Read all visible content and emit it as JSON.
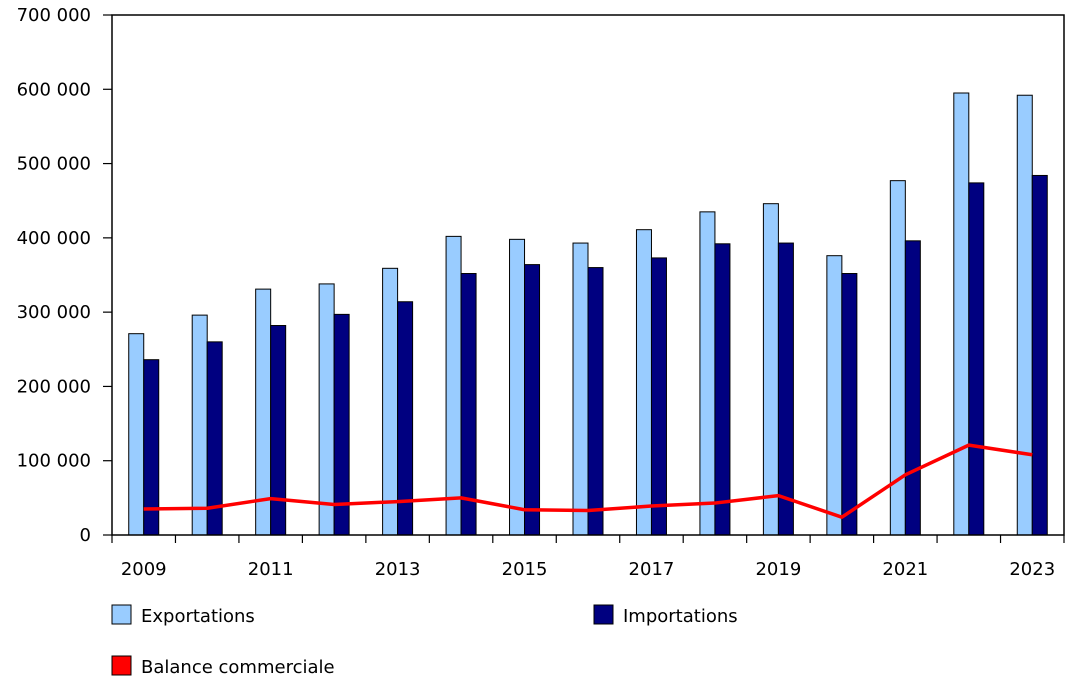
{
  "chart_data": {
    "type": "bar",
    "categories": [
      "2009",
      "2010",
      "2011",
      "2012",
      "2013",
      "2014",
      "2015",
      "2016",
      "2017",
      "2018",
      "2019",
      "2020",
      "2021",
      "2022",
      "2023"
    ],
    "x_tick_labels": [
      "2009",
      "",
      "2011",
      "",
      "2013",
      "",
      "2015",
      "",
      "2017",
      "",
      "2019",
      "",
      "2021",
      "",
      "2023"
    ],
    "y_tick_labels": [
      "0",
      "100 000",
      "200 000",
      "300 000",
      "400 000",
      "500 000",
      "600 000",
      "700 000"
    ],
    "ylim": [
      0,
      700000
    ],
    "grid": false,
    "legend_placement": "bottom",
    "series": [
      {
        "name": "Exportations",
        "kind": "bar",
        "color": "#99ccff",
        "values": [
          271000,
          296000,
          331000,
          338000,
          359000,
          402000,
          398000,
          393000,
          411000,
          435000,
          446000,
          376000,
          477000,
          595000,
          592000
        ]
      },
      {
        "name": "Importations",
        "kind": "bar",
        "color": "#000080",
        "values": [
          236000,
          260000,
          282000,
          297000,
          314000,
          352000,
          364000,
          360000,
          373000,
          392000,
          393000,
          352000,
          396000,
          474000,
          484000
        ]
      },
      {
        "name": "Balance commerciale",
        "kind": "line",
        "color": "#ff0000",
        "values": [
          35000,
          36000,
          49000,
          41000,
          45000,
          50000,
          34000,
          33000,
          39000,
          43000,
          53000,
          24000,
          81000,
          121000,
          108000
        ]
      }
    ]
  }
}
